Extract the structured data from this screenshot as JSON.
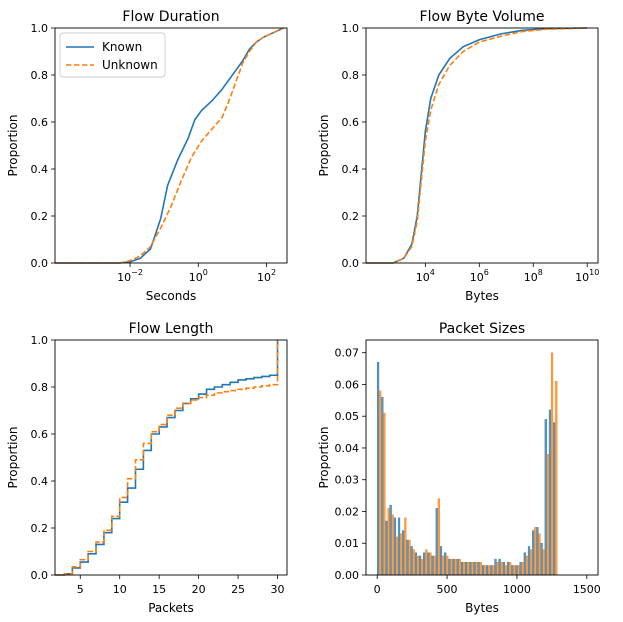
{
  "colors": {
    "known": "#1f77b4",
    "unknown": "#ff7f0e",
    "axis": "#000000"
  },
  "chart_data": [
    {
      "type": "line",
      "title": "Flow Duration",
      "xlabel": "Seconds",
      "ylabel": "Proportion",
      "xscale": "log",
      "xlim": [
        -4.2,
        2.6
      ],
      "ylim": [
        0,
        1
      ],
      "x_ticks": [
        {
          "exp": -2,
          "label": "10",
          "sup": "−2"
        },
        {
          "exp": 0,
          "label": "10",
          "sup": "0"
        },
        {
          "exp": 2,
          "label": "10",
          "sup": "2"
        }
      ],
      "y_ticks": [
        "0.0",
        "0.2",
        "0.4",
        "0.6",
        "0.8",
        "1.0"
      ],
      "legend": {
        "position": "upper-left",
        "entries": [
          "Known",
          "Unknown"
        ]
      },
      "series": [
        {
          "name": "Known",
          "style": "solid",
          "points": [
            [
              -4.2,
              0
            ],
            [
              -2.3,
              0
            ],
            [
              -2.0,
              0.005
            ],
            [
              -1.7,
              0.02
            ],
            [
              -1.4,
              0.06
            ],
            [
              -1.1,
              0.19
            ],
            [
              -0.9,
              0.33
            ],
            [
              -0.6,
              0.44
            ],
            [
              -0.3,
              0.53
            ],
            [
              -0.1,
              0.61
            ],
            [
              0.1,
              0.65
            ],
            [
              0.4,
              0.69
            ],
            [
              0.7,
              0.74
            ],
            [
              0.9,
              0.78
            ],
            [
              1.1,
              0.82
            ],
            [
              1.3,
              0.86
            ],
            [
              1.5,
              0.91
            ],
            [
              1.7,
              0.94
            ],
            [
              1.9,
              0.96
            ],
            [
              2.2,
              0.98
            ],
            [
              2.5,
              1.0
            ]
          ]
        },
        {
          "name": "Unknown",
          "style": "dashed",
          "points": [
            [
              -4.2,
              0
            ],
            [
              -2.3,
              0
            ],
            [
              -2.0,
              0.01
            ],
            [
              -1.7,
              0.03
            ],
            [
              -1.4,
              0.07
            ],
            [
              -1.1,
              0.15
            ],
            [
              -0.8,
              0.24
            ],
            [
              -0.5,
              0.35
            ],
            [
              -0.2,
              0.45
            ],
            [
              0.1,
              0.52
            ],
            [
              0.4,
              0.57
            ],
            [
              0.7,
              0.62
            ],
            [
              0.9,
              0.69
            ],
            [
              1.1,
              0.77
            ],
            [
              1.3,
              0.85
            ],
            [
              1.5,
              0.9
            ],
            [
              1.7,
              0.94
            ],
            [
              1.9,
              0.96
            ],
            [
              2.2,
              0.98
            ],
            [
              2.5,
              1.0
            ]
          ]
        }
      ]
    },
    {
      "type": "line",
      "title": "Flow Byte Volume",
      "xlabel": "Bytes",
      "ylabel": "Proportion",
      "xscale": "log",
      "xlim": [
        1.8,
        10.4
      ],
      "ylim": [
        0,
        1
      ],
      "x_ticks": [
        {
          "exp": 4,
          "label": "10",
          "sup": "4"
        },
        {
          "exp": 6,
          "label": "10",
          "sup": "6"
        },
        {
          "exp": 8,
          "label": "10",
          "sup": "8"
        },
        {
          "exp": 10,
          "label": "10",
          "sup": "10"
        }
      ],
      "y_ticks": [
        "0.0",
        "0.2",
        "0.4",
        "0.6",
        "0.8",
        "1.0"
      ],
      "series": [
        {
          "name": "Known",
          "style": "solid",
          "points": [
            [
              1.8,
              0
            ],
            [
              2.8,
              0
            ],
            [
              3.2,
              0.02
            ],
            [
              3.5,
              0.08
            ],
            [
              3.7,
              0.2
            ],
            [
              3.85,
              0.38
            ],
            [
              4.0,
              0.56
            ],
            [
              4.2,
              0.7
            ],
            [
              4.5,
              0.8
            ],
            [
              4.9,
              0.87
            ],
            [
              5.4,
              0.92
            ],
            [
              6.0,
              0.95
            ],
            [
              6.8,
              0.975
            ],
            [
              7.6,
              0.99
            ],
            [
              8.5,
              0.997
            ],
            [
              10.0,
              1.0
            ]
          ]
        },
        {
          "name": "Unknown",
          "style": "dashed",
          "points": [
            [
              1.8,
              0
            ],
            [
              2.8,
              0
            ],
            [
              3.2,
              0.02
            ],
            [
              3.5,
              0.07
            ],
            [
              3.7,
              0.18
            ],
            [
              3.85,
              0.35
            ],
            [
              4.0,
              0.52
            ],
            [
              4.2,
              0.65
            ],
            [
              4.5,
              0.76
            ],
            [
              4.9,
              0.84
            ],
            [
              5.4,
              0.9
            ],
            [
              6.0,
              0.94
            ],
            [
              6.8,
              0.965
            ],
            [
              7.6,
              0.985
            ],
            [
              8.5,
              0.995
            ],
            [
              10.0,
              1.0
            ]
          ]
        }
      ]
    },
    {
      "type": "line",
      "title": "Flow Length",
      "xlabel": "Packets",
      "ylabel": "Proportion",
      "xscale": "linear",
      "step": true,
      "xlim": [
        1.8,
        31.2
      ],
      "ylim": [
        0,
        1
      ],
      "x_ticks": [
        "5",
        "10",
        "15",
        "20",
        "25",
        "30"
      ],
      "y_ticks": [
        "0.0",
        "0.2",
        "0.4",
        "0.6",
        "0.8",
        "1.0"
      ],
      "series": [
        {
          "name": "Known",
          "style": "solid",
          "steps": [
            [
              3,
              0.005
            ],
            [
              4,
              0.03
            ],
            [
              5,
              0.055
            ],
            [
              6,
              0.09
            ],
            [
              7,
              0.13
            ],
            [
              8,
              0.18
            ],
            [
              9,
              0.24
            ],
            [
              10,
              0.31
            ],
            [
              11,
              0.37
            ],
            [
              12,
              0.45
            ],
            [
              13,
              0.53
            ],
            [
              14,
              0.6
            ],
            [
              15,
              0.63
            ],
            [
              16,
              0.67
            ],
            [
              17,
              0.7
            ],
            [
              18,
              0.73
            ],
            [
              19,
              0.75
            ],
            [
              20,
              0.77
            ],
            [
              21,
              0.79
            ],
            [
              22,
              0.8
            ],
            [
              23,
              0.81
            ],
            [
              24,
              0.82
            ],
            [
              25,
              0.83
            ],
            [
              26,
              0.835
            ],
            [
              27,
              0.84
            ],
            [
              28,
              0.845
            ],
            [
              29,
              0.85
            ],
            [
              30,
              1.0
            ]
          ]
        },
        {
          "name": "Unknown",
          "style": "dashed",
          "steps": [
            [
              3,
              0.005
            ],
            [
              4,
              0.035
            ],
            [
              5,
              0.065
            ],
            [
              6,
              0.1
            ],
            [
              7,
              0.14
            ],
            [
              8,
              0.19
            ],
            [
              9,
              0.25
            ],
            [
              10,
              0.33
            ],
            [
              11,
              0.41
            ],
            [
              12,
              0.49
            ],
            [
              13,
              0.56
            ],
            [
              14,
              0.61
            ],
            [
              15,
              0.64
            ],
            [
              16,
              0.68
            ],
            [
              17,
              0.71
            ],
            [
              18,
              0.73
            ],
            [
              19,
              0.745
            ],
            [
              20,
              0.755
            ],
            [
              21,
              0.765
            ],
            [
              22,
              0.775
            ],
            [
              23,
              0.78
            ],
            [
              24,
              0.785
            ],
            [
              25,
              0.79
            ],
            [
              26,
              0.795
            ],
            [
              27,
              0.8
            ],
            [
              28,
              0.805
            ],
            [
              29,
              0.81
            ],
            [
              30,
              1.0
            ]
          ]
        }
      ]
    },
    {
      "type": "bar",
      "title": "Packet Sizes",
      "xlabel": "Bytes",
      "ylabel": "Proportion",
      "bin_width": 30,
      "xlim": [
        -80,
        1580
      ],
      "ylim": [
        0,
        0.074
      ],
      "x_ticks": [
        "0",
        "500",
        "1000",
        "1500"
      ],
      "y_ticks": [
        "0.00",
        "0.01",
        "0.02",
        "0.03",
        "0.04",
        "0.05",
        "0.06",
        "0.07"
      ],
      "series": [
        {
          "name": "Known",
          "values": [
            0.067,
            0.056,
            0.017,
            0.022,
            0.018,
            0.018,
            0.014,
            0.011,
            0.009,
            0.007,
            0.006,
            0.007,
            0.007,
            0.006,
            0.021,
            0.009,
            0.007,
            0.005,
            0.005,
            0.005,
            0.004,
            0.004,
            0.004,
            0.004,
            0.004,
            0.003,
            0.003,
            0.003,
            0.005,
            0.005,
            0.004,
            0.004,
            0.003,
            0.003,
            0.004,
            0.007,
            0.009,
            0.014,
            0.015,
            0.01,
            0.049,
            0.052,
            0.048
          ]
        },
        {
          "name": "Unknown",
          "values": [
            0.058,
            0.051,
            0.021,
            0.019,
            0.012,
            0.013,
            0.018,
            0.011,
            0.008,
            0.006,
            0.005,
            0.008,
            0.007,
            0.006,
            0.024,
            0.006,
            0.006,
            0.005,
            0.005,
            0.005,
            0.004,
            0.004,
            0.004,
            0.004,
            0.004,
            0.003,
            0.003,
            0.003,
            0.004,
            0.004,
            0.003,
            0.004,
            0.003,
            0.003,
            0.004,
            0.006,
            0.008,
            0.015,
            0.013,
            0.008,
            0.038,
            0.07,
            0.061
          ]
        }
      ]
    }
  ]
}
